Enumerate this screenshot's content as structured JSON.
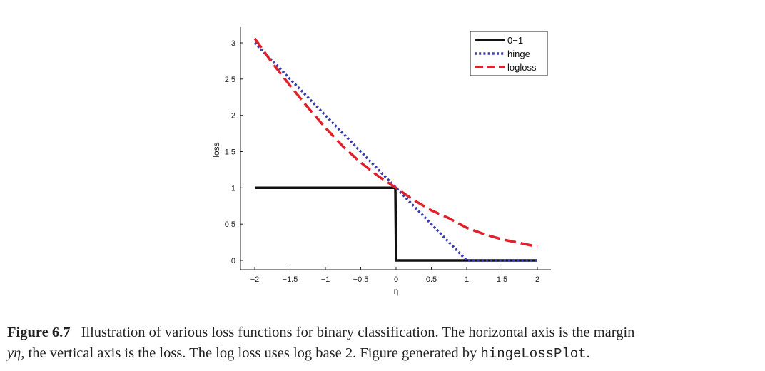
{
  "chart_data": {
    "type": "line",
    "title": "",
    "xlabel": "η",
    "ylabel": "loss",
    "xlim": [
      -2,
      2
    ],
    "ylim": [
      0,
      3
    ],
    "xticks": [
      "−2",
      "−1.5",
      "−1",
      "−0.5",
      "0",
      "0.5",
      "1",
      "1.5",
      "2"
    ],
    "yticks": [
      "0",
      "0.5",
      "1",
      "1.5",
      "2",
      "2.5",
      "3"
    ],
    "legend_position": "top-right",
    "grid": false,
    "series": [
      {
        "name": "0−1",
        "color": "#111111",
        "style": "solid",
        "x": [
          -2,
          -1.5,
          -1,
          -0.5,
          -0.01,
          0,
          0.5,
          1,
          1.5,
          2
        ],
        "y": [
          1,
          1,
          1,
          1,
          1,
          0,
          0,
          0,
          0,
          0
        ]
      },
      {
        "name": "hinge",
        "color": "#3a3dab",
        "style": "dotted",
        "x": [
          -2,
          -1.5,
          -1,
          -0.5,
          0,
          0.5,
          1,
          1.5,
          2
        ],
        "y": [
          3,
          2.5,
          2,
          1.5,
          1,
          0.5,
          0,
          0,
          0
        ]
      },
      {
        "name": "logloss",
        "color": "#e0202a",
        "style": "dashed",
        "x": [
          -2,
          -1.75,
          -1.5,
          -1.25,
          -1,
          -0.75,
          -0.5,
          -0.25,
          0,
          0.25,
          0.5,
          0.75,
          1,
          1.25,
          1.5,
          1.75,
          2
        ],
        "y": [
          3.06,
          2.72,
          2.41,
          2.11,
          1.83,
          1.57,
          1.35,
          1.16,
          1.0,
          0.83,
          0.69,
          0.58,
          0.45,
          0.36,
          0.29,
          0.24,
          0.19
        ]
      }
    ]
  },
  "caption": {
    "label": "Figure 6.7",
    "text_line1": "Illustration of various loss functions for binary classification. The horizontal axis is the margin",
    "math": "yη",
    "text_line2": ", the vertical axis is the loss. The log loss uses log base 2. Figure generated by ",
    "code": "hingeLossPlot",
    "end": "."
  }
}
